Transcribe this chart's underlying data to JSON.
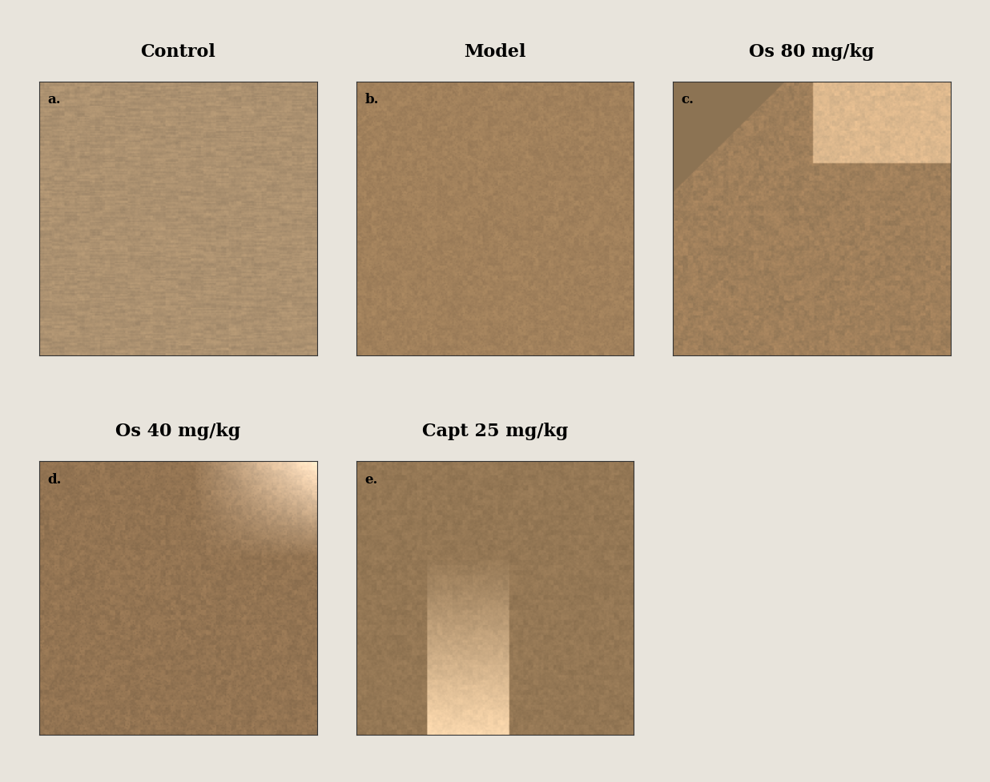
{
  "background_color": "#f0ece4",
  "title_labels": [
    "Control",
    "Model",
    "Os 80 mg/kg",
    "Os 40 mg/kg",
    "Capt 25 mg/kg"
  ],
  "sub_labels": [
    "a.",
    "b.",
    "c.",
    "d.",
    "e."
  ],
  "title_fontsize": 16,
  "sublabel_fontsize": 12,
  "title_fontweight": "bold",
  "fig_bg": "#ddd8cc",
  "image_bg": "#b8a898",
  "image_border": "#444444"
}
